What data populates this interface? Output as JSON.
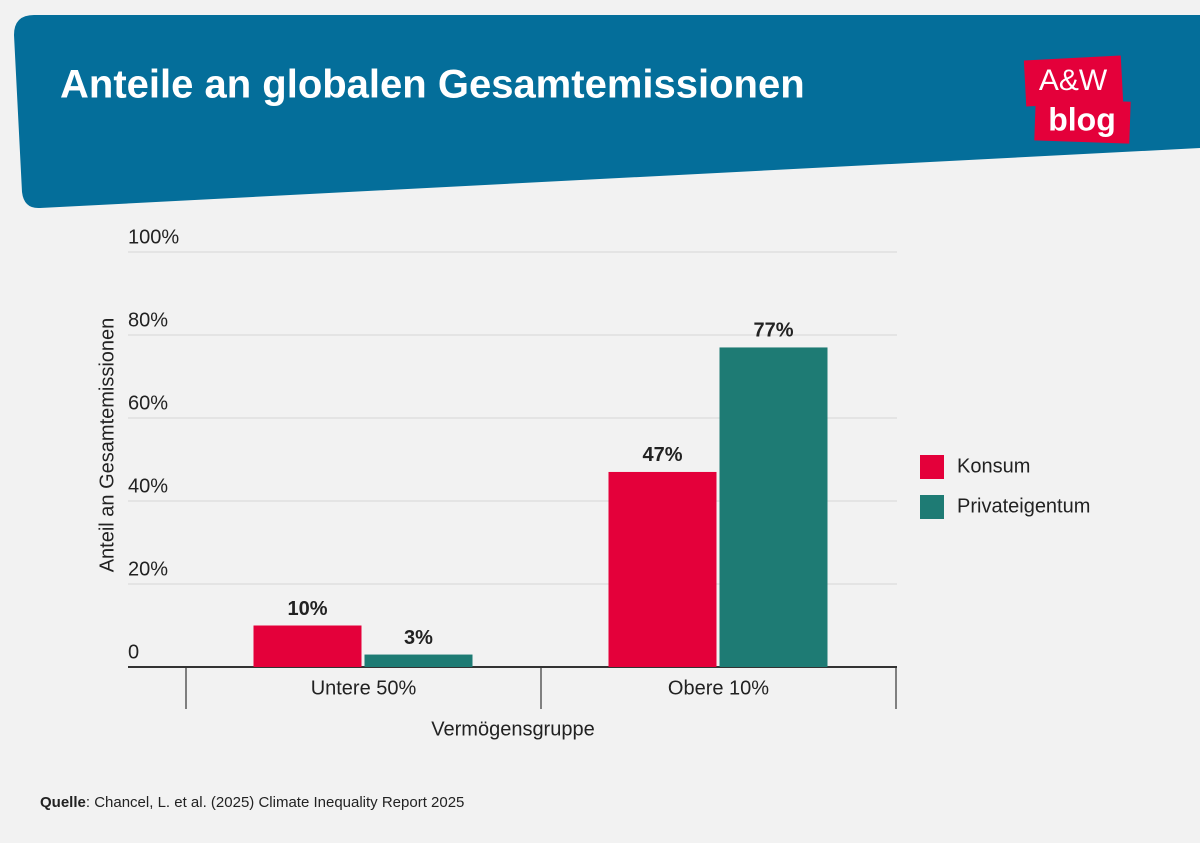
{
  "header": {
    "logo_top": "A&W",
    "logo_bottom": "blog"
  },
  "chart_data": {
    "type": "bar",
    "title": "Anteile an globalen Gesamtemissionen",
    "x_label": "Vermögensgruppe",
    "y_label": "Anteil an Gesamtemissionen",
    "categories": [
      "Untere 50%",
      "Obere 10%"
    ],
    "series": [
      {
        "name": "Konsum",
        "color": "#e4003a",
        "values": [
          10,
          47
        ],
        "value_labels": [
          "10%",
          "47%"
        ]
      },
      {
        "name": "Privateigentum",
        "color": "#1e7b74",
        "values": [
          3,
          77
        ],
        "value_labels": [
          "3%",
          "77%"
        ]
      }
    ],
    "ylim": [
      0,
      100
    ],
    "yticks": [
      0,
      {
        "value": 20,
        "label": "20%"
      },
      {
        "value": 40,
        "label": "40%"
      },
      {
        "value": 60,
        "label": "60%"
      },
      {
        "value": 80,
        "label": "80%"
      },
      {
        "value": 100,
        "label": "100%"
      }
    ],
    "grid": true,
    "legend": "right"
  },
  "source": {
    "label": "Quelle",
    "text": ": Chancel, L. et al. (2025) Climate Inequality Report 2025"
  }
}
